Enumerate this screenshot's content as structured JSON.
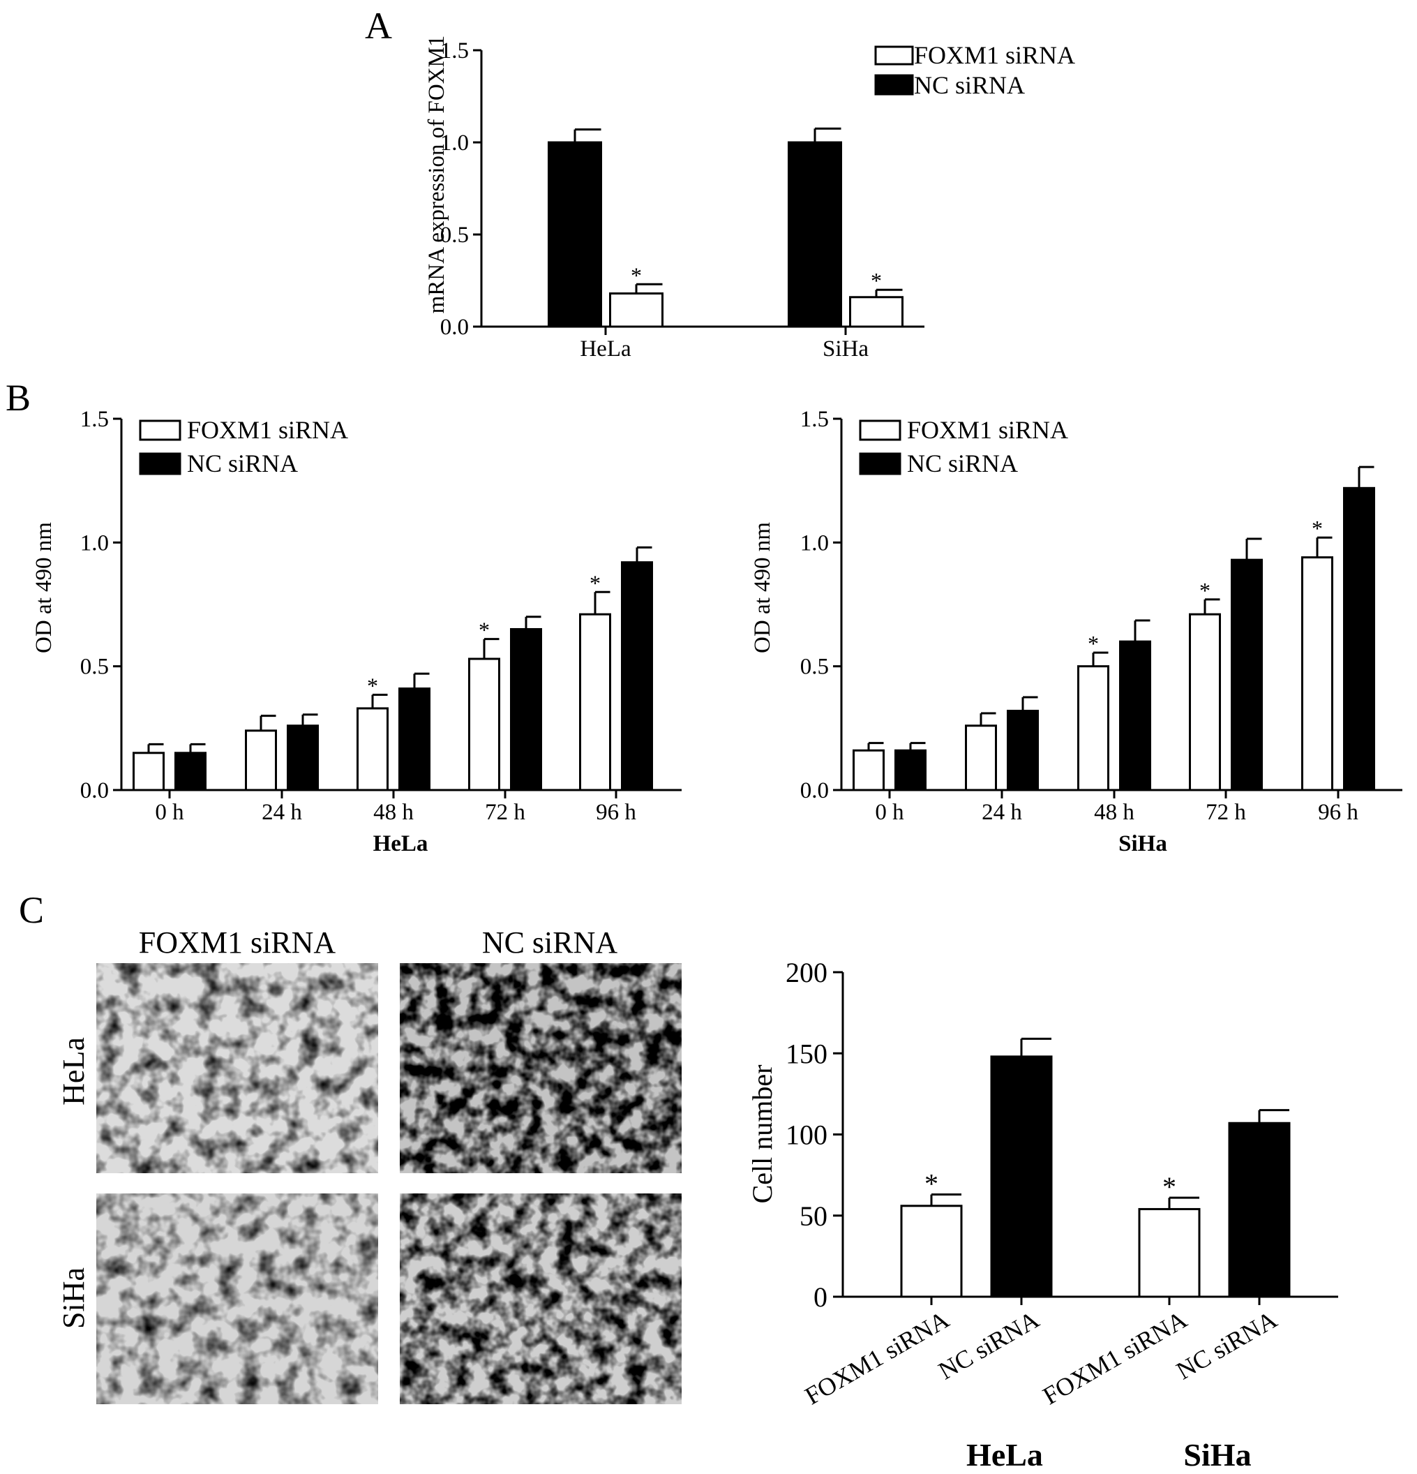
{
  "panels": {
    "A": "A",
    "B": "B",
    "C": "C"
  },
  "colors": {
    "foxm1": "#ffffff",
    "nc": "#000000",
    "stroke": "#000000"
  },
  "legend": {
    "foxm1": "FOXM1 siRNA",
    "nc": "NC siRNA"
  },
  "significance_marker": "*",
  "micrographs": {
    "col_labels": [
      "FOXM1 siRNA",
      "NC siRNA"
    ],
    "row_labels": [
      "HeLa",
      "SiHa"
    ]
  },
  "chart_data": [
    {
      "id": "A",
      "type": "bar",
      "ylabel": "mRNA expression of FOXM1",
      "xlabel": "",
      "ylim": [
        0,
        1.5
      ],
      "yticks": [
        "0.0",
        "0.5",
        "1.0",
        "1.5"
      ],
      "categories": [
        "HeLa",
        "SiHa"
      ],
      "legend_position": "top-right",
      "series": [
        {
          "name": "NC siRNA",
          "values": [
            1.0,
            1.0
          ],
          "errors": [
            0.07,
            0.075
          ],
          "significant": [
            false,
            false
          ]
        },
        {
          "name": "FOXM1 siRNA",
          "values": [
            0.18,
            0.16
          ],
          "errors": [
            0.05,
            0.04
          ],
          "significant": [
            true,
            true
          ]
        }
      ]
    },
    {
      "id": "B-HeLa",
      "type": "bar",
      "ylabel": "OD at 490 nm",
      "xlabel": "HeLa",
      "ylim": [
        0,
        1.5
      ],
      "yticks": [
        "0.0",
        "0.5",
        "1.0",
        "1.5"
      ],
      "categories": [
        "0 h",
        "24 h",
        "48 h",
        "72 h",
        "96 h"
      ],
      "legend_position": "top-left",
      "series": [
        {
          "name": "FOXM1 siRNA",
          "values": [
            0.15,
            0.24,
            0.33,
            0.53,
            0.71
          ],
          "errors": [
            0.035,
            0.06,
            0.055,
            0.08,
            0.09
          ],
          "significant": [
            false,
            false,
            true,
            true,
            true
          ]
        },
        {
          "name": "NC siRNA",
          "values": [
            0.15,
            0.26,
            0.41,
            0.65,
            0.92
          ],
          "errors": [
            0.035,
            0.045,
            0.06,
            0.05,
            0.06
          ],
          "significant": [
            false,
            false,
            false,
            false,
            false
          ]
        }
      ]
    },
    {
      "id": "B-SiHa",
      "type": "bar",
      "ylabel": "OD at 490 nm",
      "xlabel": "SiHa",
      "ylim": [
        0,
        1.5
      ],
      "yticks": [
        "0.0",
        "0.5",
        "1.0",
        "1.5"
      ],
      "categories": [
        "0 h",
        "24 h",
        "48 h",
        "72 h",
        "96 h"
      ],
      "legend_position": "top-left",
      "series": [
        {
          "name": "FOXM1 siRNA",
          "values": [
            0.16,
            0.26,
            0.5,
            0.71,
            0.94
          ],
          "errors": [
            0.03,
            0.05,
            0.055,
            0.06,
            0.08
          ],
          "significant": [
            false,
            false,
            true,
            true,
            true
          ]
        },
        {
          "name": "NC siRNA",
          "values": [
            0.16,
            0.32,
            0.6,
            0.93,
            1.22
          ],
          "errors": [
            0.03,
            0.055,
            0.085,
            0.085,
            0.085
          ],
          "significant": [
            false,
            false,
            false,
            false,
            false
          ]
        }
      ]
    },
    {
      "id": "C",
      "type": "bar",
      "ylabel": "Cell number",
      "xlabel": "",
      "ylim": [
        0,
        200
      ],
      "yticks": [
        "0",
        "50",
        "100",
        "150",
        "200"
      ],
      "groups": [
        "HeLa",
        "SiHa"
      ],
      "categories": [
        "FOXM1 siRNA",
        "NC siRNA",
        "FOXM1 siRNA",
        "NC siRNA"
      ],
      "values": [
        56,
        148,
        54,
        107
      ],
      "errors": [
        7,
        11,
        7,
        8
      ],
      "fills": [
        "foxm1",
        "nc",
        "foxm1",
        "nc"
      ],
      "significant": [
        true,
        false,
        true,
        false
      ]
    }
  ]
}
